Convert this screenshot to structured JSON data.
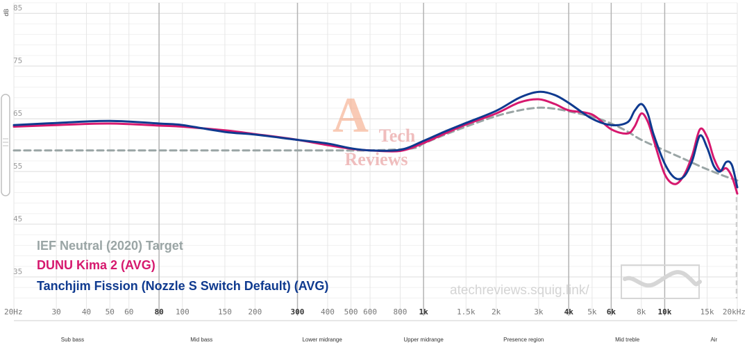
{
  "chart_data": {
    "type": "line",
    "xscale": "log",
    "xlim": [
      20,
      20000
    ],
    "ylim": [
      30,
      87
    ],
    "ylabel": "dB",
    "yticks": [
      35,
      45,
      55,
      65,
      75,
      85
    ],
    "xticks": [
      {
        "f": 20,
        "label": "20Hz"
      },
      {
        "f": 30,
        "label": "30"
      },
      {
        "f": 40,
        "label": "40"
      },
      {
        "f": 50,
        "label": "50"
      },
      {
        "f": 60,
        "label": "60"
      },
      {
        "f": 80,
        "label": "80",
        "major": true
      },
      {
        "f": 100,
        "label": "100"
      },
      {
        "f": 150,
        "label": "150"
      },
      {
        "f": 200,
        "label": "200"
      },
      {
        "f": 300,
        "label": "300",
        "major": true
      },
      {
        "f": 400,
        "label": "400"
      },
      {
        "f": 500,
        "label": "500"
      },
      {
        "f": 600,
        "label": "600"
      },
      {
        "f": 800,
        "label": "800"
      },
      {
        "f": 1000,
        "label": "1k",
        "major": true
      },
      {
        "f": 1500,
        "label": "1.5k"
      },
      {
        "f": 2000,
        "label": "2k"
      },
      {
        "f": 3000,
        "label": "3k"
      },
      {
        "f": 4000,
        "label": "4k",
        "major": true
      },
      {
        "f": 5000,
        "label": "5k"
      },
      {
        "f": 6000,
        "label": "6k",
        "major": true
      },
      {
        "f": 8000,
        "label": "8k"
      },
      {
        "f": 10000,
        "label": "10k",
        "major": true
      },
      {
        "f": 15000,
        "label": "15k"
      },
      {
        "f": 20000,
        "label": "20kHz"
      }
    ],
    "bands": [
      {
        "label": "Sub bass",
        "f": 35
      },
      {
        "label": "Mid bass",
        "f": 120
      },
      {
        "label": "Lower midrange",
        "f": 380
      },
      {
        "label": "Upper midrange",
        "f": 1000
      },
      {
        "label": "Presence region",
        "f": 2600
      },
      {
        "label": "Mid treble",
        "f": 7000
      },
      {
        "label": "Air",
        "f": 16000
      }
    ],
    "series": [
      {
        "name": "IEF Neutral (2020) Target",
        "color": "#9aa5a5",
        "dashed": true,
        "points": [
          [
            20,
            59
          ],
          [
            50,
            59
          ],
          [
            100,
            59
          ],
          [
            200,
            59
          ],
          [
            400,
            59
          ],
          [
            600,
            59
          ],
          [
            900,
            59.4
          ],
          [
            1000,
            60.3
          ],
          [
            1200,
            61.8
          ],
          [
            1500,
            63.5
          ],
          [
            2000,
            65.5
          ],
          [
            2500,
            66.6
          ],
          [
            3000,
            67.1
          ],
          [
            3500,
            66.9
          ],
          [
            4000,
            66.4
          ],
          [
            5000,
            65.4
          ],
          [
            6000,
            64.1
          ],
          [
            7000,
            62.6
          ],
          [
            8000,
            61.0
          ],
          [
            10000,
            59.0
          ],
          [
            12000,
            57.4
          ],
          [
            14000,
            56.0
          ],
          [
            16000,
            54.9
          ],
          [
            18000,
            54.0
          ],
          [
            20000,
            53.3
          ]
        ]
      },
      {
        "name": "DUNU Kima 2 (AVG)",
        "color": "#d6186e",
        "dashed": false,
        "points": [
          [
            20,
            63.5
          ],
          [
            30,
            63.8
          ],
          [
            50,
            64.1
          ],
          [
            80,
            63.7
          ],
          [
            100,
            63.5
          ],
          [
            150,
            62.8
          ],
          [
            200,
            62.1
          ],
          [
            300,
            61.0
          ],
          [
            400,
            60.0
          ],
          [
            500,
            59.3
          ],
          [
            600,
            59.0
          ],
          [
            800,
            58.9
          ],
          [
            1000,
            60.4
          ],
          [
            1200,
            62.0
          ],
          [
            1500,
            63.9
          ],
          [
            2000,
            66.0
          ],
          [
            2500,
            68.1
          ],
          [
            3000,
            68.7
          ],
          [
            3500,
            67.8
          ],
          [
            4000,
            66.6
          ],
          [
            5000,
            65.8
          ],
          [
            6000,
            63.0
          ],
          [
            7000,
            62.2
          ],
          [
            7500,
            63.5
          ],
          [
            8000,
            66.0
          ],
          [
            8500,
            64.5
          ],
          [
            9000,
            61.0
          ],
          [
            10000,
            54.5
          ],
          [
            11000,
            52.6
          ],
          [
            12000,
            54.2
          ],
          [
            13000,
            58.0
          ],
          [
            14000,
            63.0
          ],
          [
            15000,
            61.5
          ],
          [
            16000,
            57.5
          ],
          [
            17000,
            55.2
          ],
          [
            18000,
            55.6
          ],
          [
            19000,
            54.0
          ],
          [
            20000,
            50.8
          ]
        ]
      },
      {
        "name": "Tanchjim Fission (Nozzle S Switch Default) (AVG)",
        "color": "#0f3a8f",
        "dashed": false,
        "points": [
          [
            20,
            63.8
          ],
          [
            30,
            64.2
          ],
          [
            50,
            64.6
          ],
          [
            80,
            64.1
          ],
          [
            100,
            63.8
          ],
          [
            150,
            62.5
          ],
          [
            200,
            62.0
          ],
          [
            300,
            61.0
          ],
          [
            400,
            60.3
          ],
          [
            500,
            59.4
          ],
          [
            600,
            59.0
          ],
          [
            800,
            59.1
          ],
          [
            1000,
            60.8
          ],
          [
            1200,
            62.4
          ],
          [
            1500,
            64.2
          ],
          [
            2000,
            66.5
          ],
          [
            2500,
            69.0
          ],
          [
            3000,
            70.1
          ],
          [
            3500,
            69.5
          ],
          [
            4000,
            68.0
          ],
          [
            5000,
            65.0
          ],
          [
            6000,
            63.8
          ],
          [
            7000,
            64.3
          ],
          [
            7500,
            66.5
          ],
          [
            8000,
            67.8
          ],
          [
            8500,
            66.0
          ],
          [
            9000,
            62.0
          ],
          [
            10000,
            56.5
          ],
          [
            11000,
            53.8
          ],
          [
            12000,
            54.0
          ],
          [
            13000,
            57.0
          ],
          [
            14000,
            61.8
          ],
          [
            15000,
            59.5
          ],
          [
            16000,
            56.0
          ],
          [
            17000,
            55.0
          ],
          [
            18000,
            56.8
          ],
          [
            19000,
            56.2
          ],
          [
            20000,
            52.0
          ]
        ]
      }
    ]
  },
  "watermark": {
    "url": "atechreviews.squig.link/",
    "logo_letter": "A",
    "logo_word1": "Tech",
    "logo_word2": "Reviews"
  }
}
